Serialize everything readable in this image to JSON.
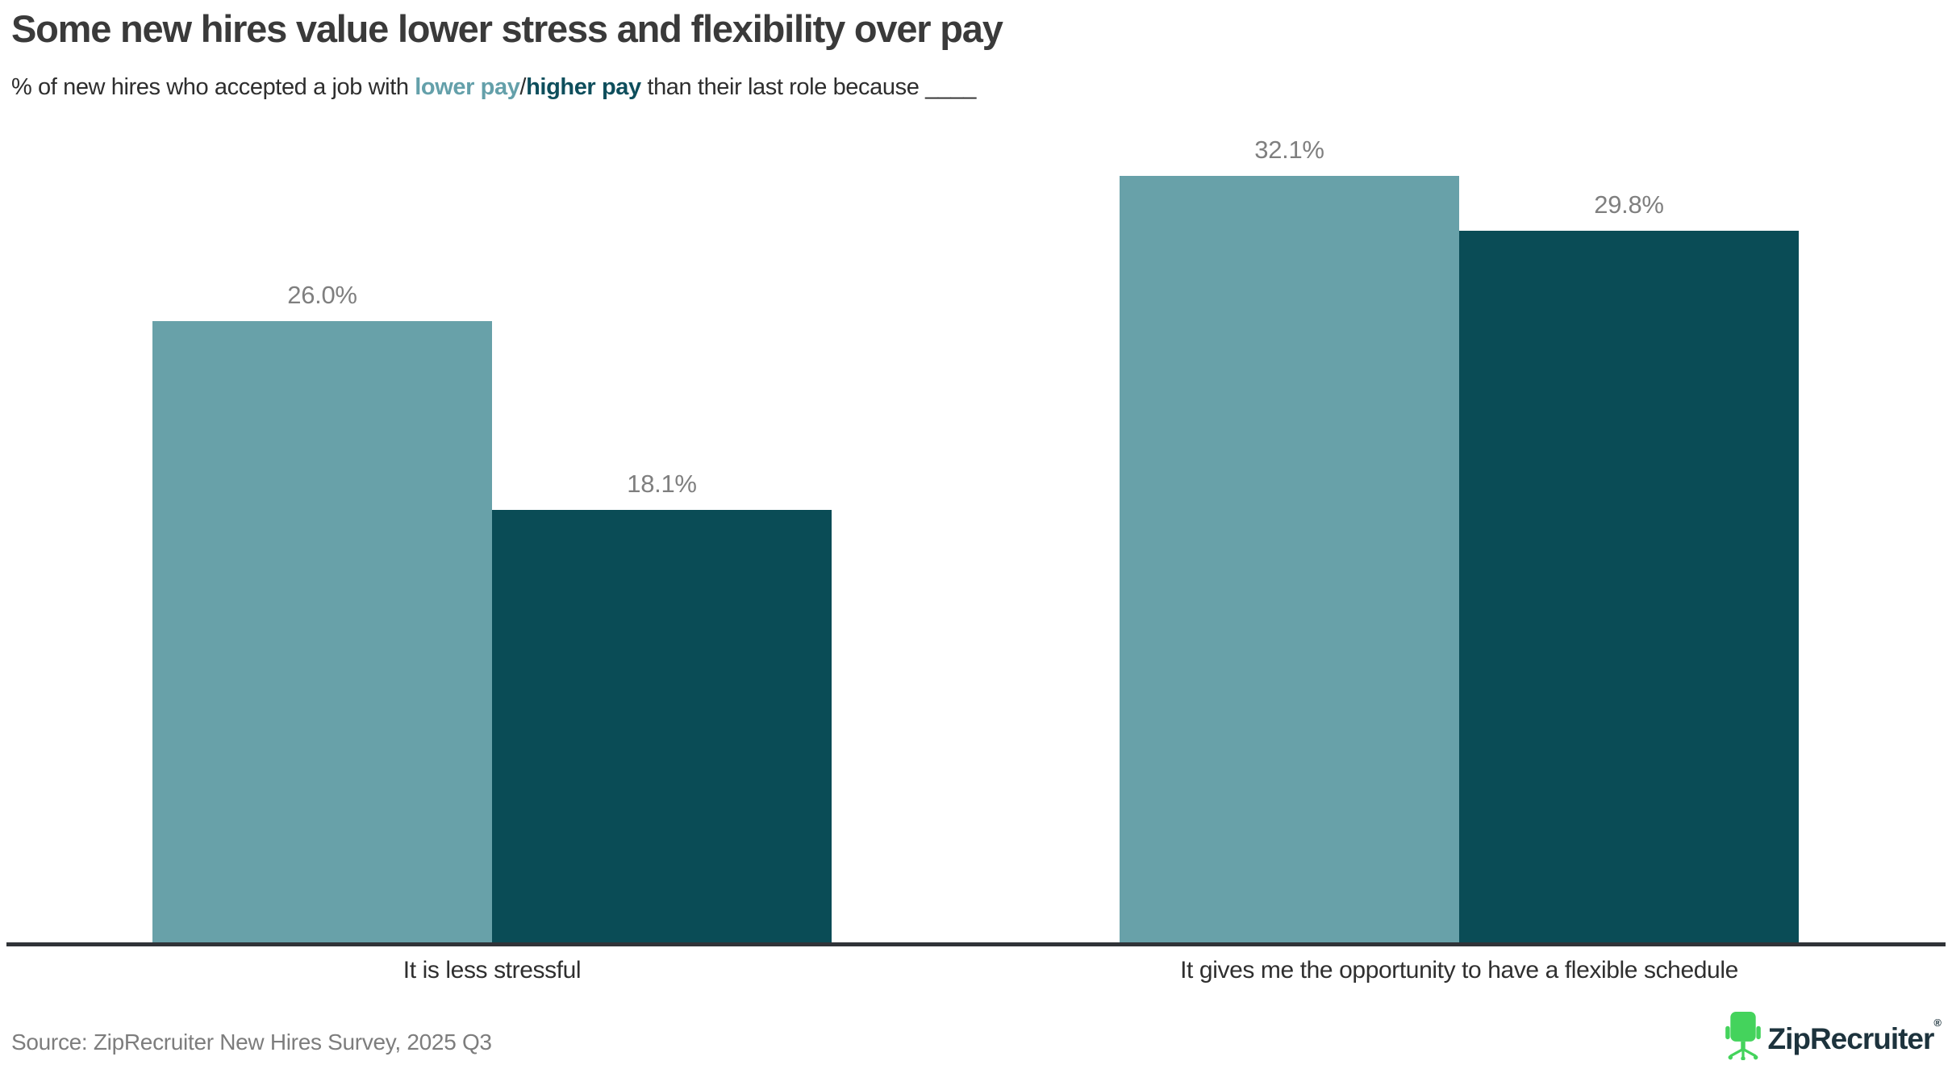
{
  "header": {
    "title": "Some new hires value lower stress and flexibility over pay",
    "subtitle_prefix": "% of new hires who accepted a job with ",
    "subtitle_lower_pay": "lower pay",
    "subtitle_slash": "/",
    "subtitle_higher_pay": "higher pay",
    "subtitle_suffix": " than their last role because ____"
  },
  "chart_data": {
    "type": "bar",
    "categories": [
      "It is less stressful",
      "It gives me the opportunity to have a flexible schedule"
    ],
    "series": [
      {
        "name": "lower pay",
        "color": "#68a1a9",
        "values": [
          26.0,
          32.1
        ]
      },
      {
        "name": "higher pay",
        "color": "#0a4c56",
        "values": [
          18.1,
          29.8
        ]
      }
    ],
    "value_label_format": "percent_one_decimal",
    "value_labels": [
      [
        "26.0%",
        "32.1%"
      ],
      [
        "18.1%",
        "29.8%"
      ]
    ],
    "ylim": [
      0,
      35
    ],
    "grid": false,
    "y_axis_visible": false,
    "legend": "encoded in subtitle colors",
    "title": "Some new hires value lower stress and flexibility over pay",
    "xlabel": "",
    "ylabel": ""
  },
  "colors": {
    "bar_light_teal": "#68a1a9",
    "bar_dark_teal": "#0a4c56",
    "subtitle_lower_pay": "#64a0aa",
    "subtitle_higher_pay": "#0e4e5c",
    "value_label_gray": "#7f7f7f",
    "axis_line": "#303338",
    "logo_green": "#44d35c",
    "logo_text": "#1d333d"
  },
  "footer": {
    "source": "Source: ZipRecruiter New Hires Survey, 2025 Q3",
    "logo_text": "ZipRecruiter",
    "logo_registered": "®"
  }
}
